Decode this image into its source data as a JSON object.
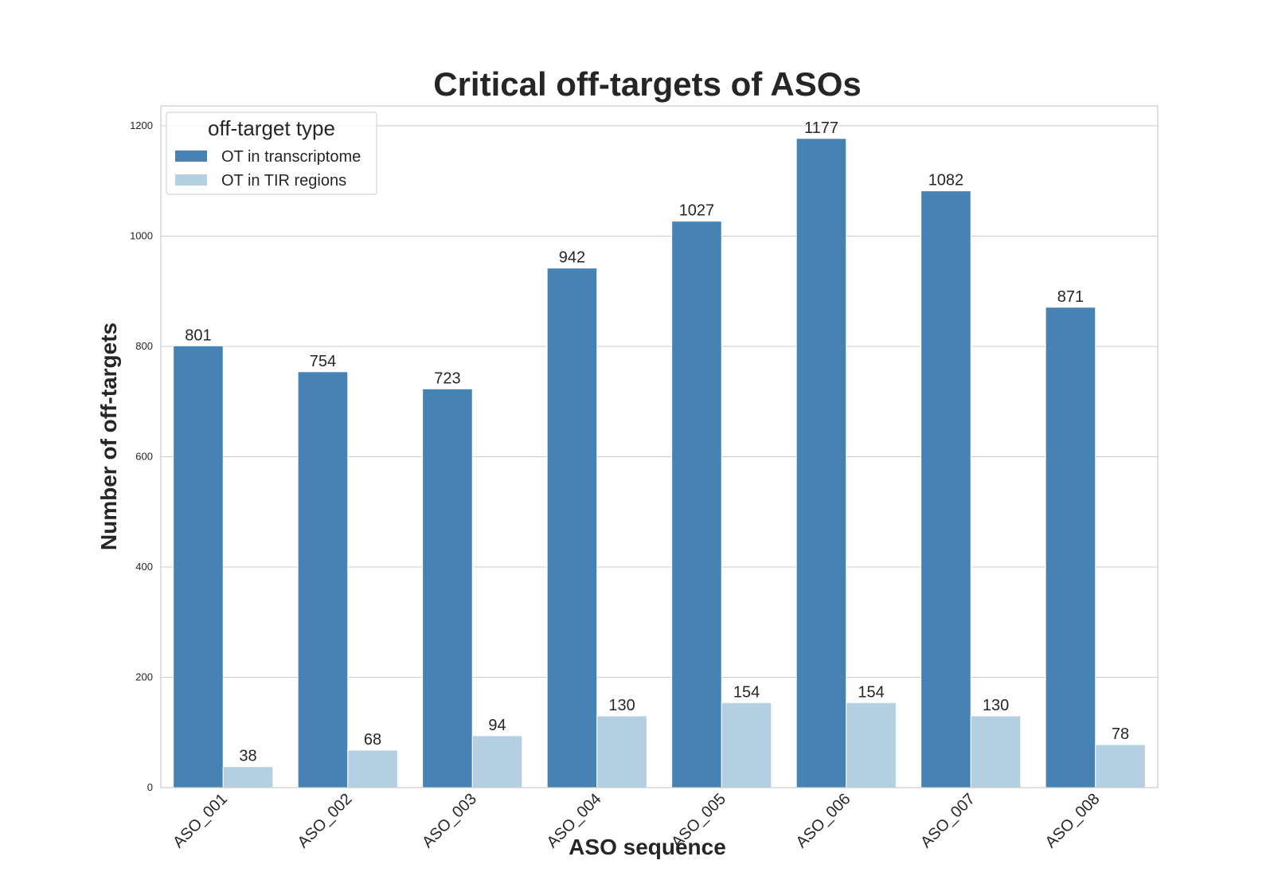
{
  "chart_data": {
    "type": "bar",
    "title": "Critical off-targets of ASOs",
    "xlabel": "ASO sequence",
    "ylabel": "Number of off-targets",
    "categories": [
      "ASO_001",
      "ASO_002",
      "ASO_003",
      "ASO_004",
      "ASO_005",
      "ASO_006",
      "ASO_007",
      "ASO_008"
    ],
    "series": [
      {
        "name": "OT in transcriptome",
        "color": "#4682b4",
        "values": [
          801,
          754,
          723,
          942,
          1027,
          1177,
          1082,
          871
        ]
      },
      {
        "name": "OT in TIR regions",
        "color": "#b3cfe1",
        "values": [
          38,
          68,
          94,
          130,
          154,
          154,
          130,
          78
        ]
      }
    ],
    "yticks": [
      0,
      200,
      400,
      600,
      800,
      1000,
      1200
    ],
    "ylim": [
      0,
      1236
    ],
    "grid": true,
    "legend": {
      "title": "off-target type",
      "placement": "top-left"
    },
    "bar_labels": true
  }
}
